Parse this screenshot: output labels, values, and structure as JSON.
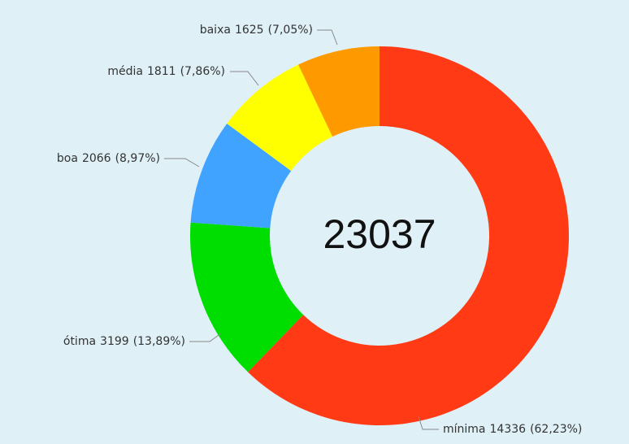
{
  "chart_data": {
    "type": "donut",
    "categories": [
      "mínima",
      "ótima",
      "boa",
      "média",
      "baixa"
    ],
    "values": [
      14336,
      3199,
      2066,
      1811,
      1625
    ],
    "percentages": [
      {
        "value": 62.23,
        "label": "(62,23%)"
      },
      {
        "value": 13.89,
        "label": "(13,89%)"
      },
      {
        "value": 8.97,
        "label": "(8,97%)"
      },
      {
        "value": 7.86,
        "label": "(7,86%)"
      },
      {
        "value": 7.05,
        "label": "(7,05%)"
      }
    ],
    "colors": [
      "#ff3a14",
      "#00dd00",
      "#3fa3ff",
      "#ffff00",
      "#ff9900"
    ],
    "total": 23037
  }
}
